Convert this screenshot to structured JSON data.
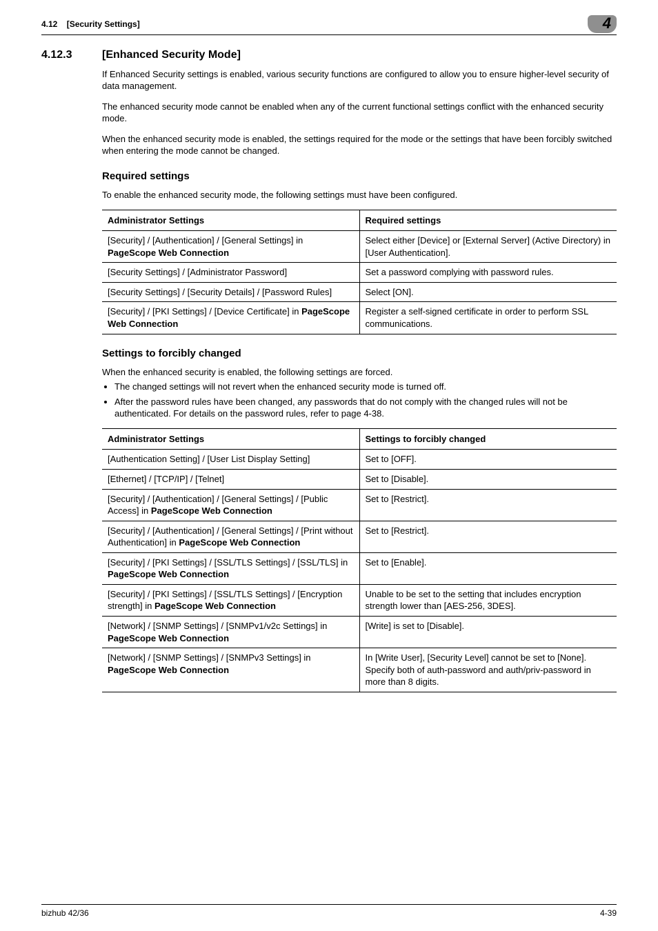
{
  "colors": {
    "tab_bg": "#8f8f8f",
    "page_bg": "#ffffff",
    "text": "#000000",
    "rule": "#000000"
  },
  "header": {
    "left_num": "4.12",
    "left_title": "[Security Settings]",
    "chapter_tab": "4"
  },
  "section": {
    "number": "4.12.3",
    "title": "[Enhanced Security Mode]",
    "paras": [
      "If Enhanced Security settings is enabled, various security functions are configured to allow you to ensure higher-level security of data management.",
      "The enhanced security mode cannot be enabled when any of the current functional settings conflict with the enhanced security mode.",
      "When the enhanced security mode is enabled, the settings required for the mode or the settings that have been forcibly switched when entering the mode cannot be changed."
    ]
  },
  "required": {
    "title": "Required settings",
    "intro": "To enable the enhanced security mode, the following settings must have been configured.",
    "head_left": "Administrator Settings",
    "head_right": "Required settings",
    "rows": [
      {
        "l_pre": "[Security] / [Authentication] / [General Settings] in ",
        "l_bold": "PageScope Web Connection",
        "l_post": "",
        "r": "Select either [Device] or [External Server] (Active Directory) in [User Authentication]."
      },
      {
        "l_pre": "[Security Settings] / [Administrator Password]",
        "l_bold": "",
        "l_post": "",
        "r": "Set a password complying with password rules."
      },
      {
        "l_pre": "[Security Settings] / [Security Details] / [Password Rules]",
        "l_bold": "",
        "l_post": "",
        "r": "Select [ON]."
      },
      {
        "l_pre": "[Security] / [PKI Settings] / [Device Certificate] in ",
        "l_bold": "PageScope Web Connection",
        "l_post": "",
        "r": "Register a self-signed certificate in order to perform SSL communications."
      }
    ]
  },
  "forced": {
    "title": "Settings to forcibly changed",
    "intro": "When the enhanced security is enabled, the following settings are forced.",
    "bullets": [
      "The changed settings will not revert when the enhanced security mode is turned off.",
      "After the password rules have been changed, any passwords that do not comply with the changed rules will not be authenticated. For details on the password rules, refer to page 4-38."
    ],
    "head_left": "Administrator Settings",
    "head_right": "Settings to forcibly changed",
    "rows": [
      {
        "l_pre": "[Authentication Setting] / [User List Display Setting]",
        "l_bold": "",
        "l_post": "",
        "r": "Set to [OFF]."
      },
      {
        "l_pre": "[Ethernet] / [TCP/IP] / [Telnet]",
        "l_bold": "",
        "l_post": "",
        "r": "Set to [Disable]."
      },
      {
        "l_pre": "[Security] / [Authentication] / [General Settings] / [Public Access] in ",
        "l_bold": "PageScope Web Connection",
        "l_post": "",
        "r": "Set to [Restrict]."
      },
      {
        "l_pre": "[Security] / [Authentication] / [General Settings] / [Print without Authentication] in ",
        "l_bold": "PageScope Web Connection",
        "l_post": "",
        "r": "Set to [Restrict]."
      },
      {
        "l_pre": "[Security] / [PKI Settings] / [SSL/TLS Settings] / [SSL/TLS] in ",
        "l_bold": "PageScope Web Connection",
        "l_post": "",
        "r": "Set to [Enable]."
      },
      {
        "l_pre": "[Security] / [PKI Settings] / [SSL/TLS Settings] / [Encryption strength] in ",
        "l_bold": "PageScope Web Connection",
        "l_post": "",
        "r": "Unable to be set to the setting that includes encryption strength lower than [AES-256, 3DES]."
      },
      {
        "l_pre": "[Network] / [SNMP Settings] / [SNMPv1/v2c Settings] in ",
        "l_bold": "PageScope Web Connection",
        "l_post": "",
        "r": "[Write] is set to [Disable]."
      },
      {
        "l_pre": "[Network] / [SNMP Settings] / [SNMPv3 Settings] in ",
        "l_bold": "PageScope Web Connection",
        "l_post": "",
        "r": "In [Write User], [Security Level] cannot be set to [None].\nSpecify both of auth-password and auth/priv-password in more than 8 digits."
      }
    ]
  },
  "footer": {
    "left": "bizhub 42/36",
    "right": "4-39"
  }
}
